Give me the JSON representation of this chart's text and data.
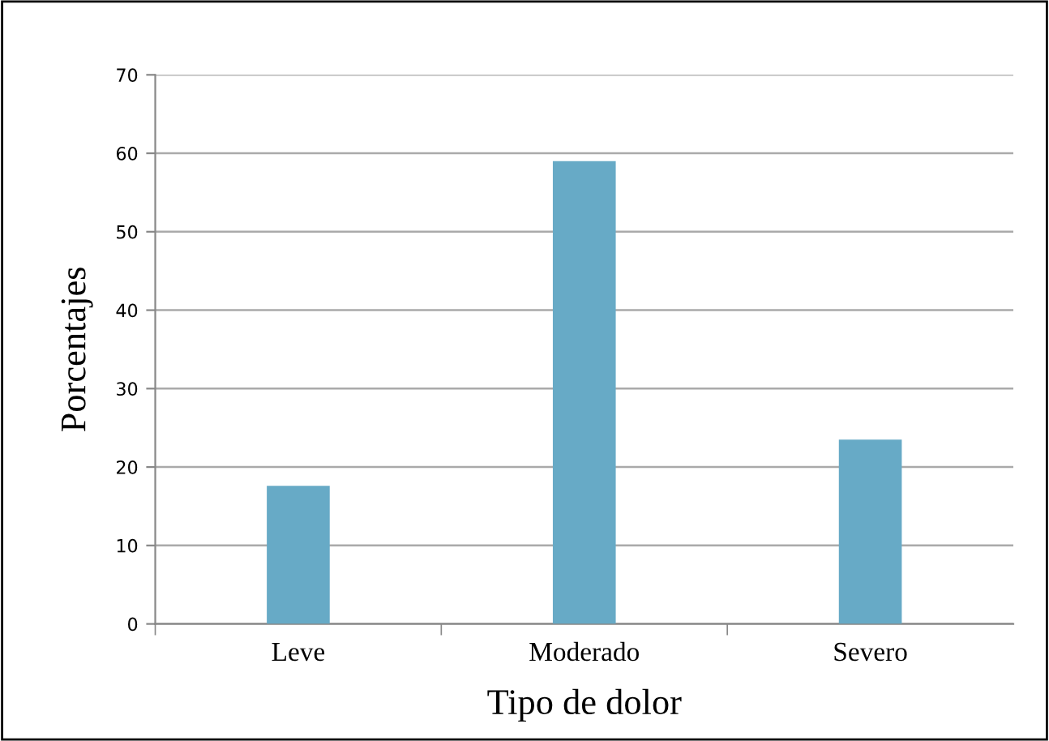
{
  "chart_data": {
    "type": "bar",
    "xlabel": "Tipo de dolor",
    "ylabel": "Porcentajes",
    "categories": [
      "Leve",
      "Moderado",
      "Severo"
    ],
    "values": [
      17.6,
      59,
      23.5
    ],
    "color": "#67aac6",
    "ylim": [
      0,
      70
    ],
    "yticks": [
      0,
      10,
      20,
      30,
      40,
      50,
      60,
      70
    ],
    "grid": "y"
  }
}
